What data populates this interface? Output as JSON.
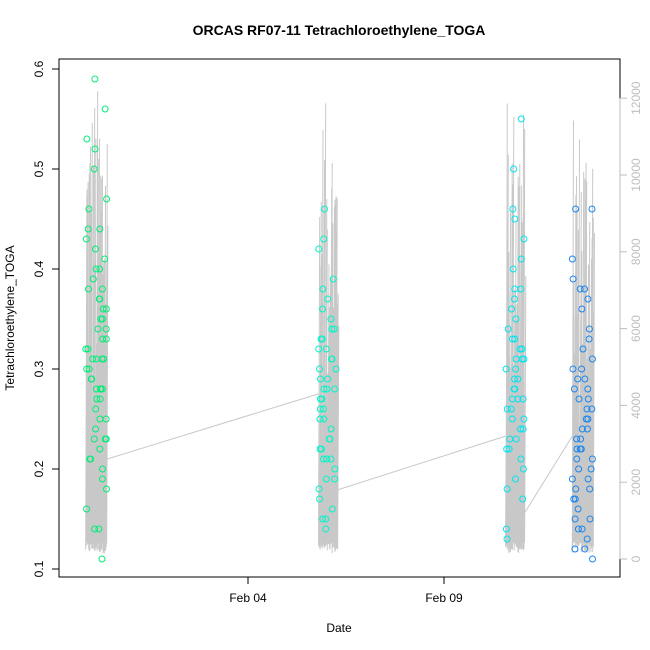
{
  "chart_data": {
    "type": "scatter",
    "title": "ORCAS RF07-11 Tetrachloroethylene_TOGA",
    "xlabel": "Date",
    "ylabel": "Tetrachloroethylene_TOGA",
    "x_ticks": [
      "Feb 04",
      "Feb 09"
    ],
    "y_ticks": [
      "0.1",
      "0.2",
      "0.3",
      "0.4",
      "0.5",
      "0.6"
    ],
    "y2_ticks": [
      "0",
      "2000",
      "4000",
      "6000",
      "8000",
      "10000",
      "12000"
    ],
    "xlim": [
      -0.2,
      14.5
    ],
    "ylim": [
      0.1,
      0.6
    ],
    "y2lim": [
      0,
      12800
    ],
    "grid": false,
    "legend": "none",
    "colors": {
      "flight1": "#00ee76",
      "flight2": "#00f5c8",
      "flight3": "#00e5ee",
      "flight4": "#1c86ee",
      "altitude": "#c8c8c8",
      "axis": "#000000",
      "y2axis": "#bebebe"
    },
    "flights": [
      {
        "x_range": [
          0.5,
          1.05
        ],
        "values": [
          0.11,
          0.14,
          0.16,
          0.18,
          0.19,
          0.2,
          0.21,
          0.21,
          0.22,
          0.23,
          0.23,
          0.24,
          0.25,
          0.25,
          0.26,
          0.27,
          0.27,
          0.28,
          0.28,
          0.28,
          0.29,
          0.29,
          0.3,
          0.3,
          0.31,
          0.31,
          0.31,
          0.32,
          0.32,
          0.33,
          0.33,
          0.34,
          0.34,
          0.35,
          0.35,
          0.36,
          0.36,
          0.37,
          0.37,
          0.38,
          0.38,
          0.39,
          0.4,
          0.4,
          0.41,
          0.42,
          0.43,
          0.44,
          0.44,
          0.46,
          0.47,
          0.5,
          0.52,
          0.53,
          0.56,
          0.59,
          0.14,
          0.23,
          0.28,
          0.31
        ]
      },
      {
        "x_range": [
          6.6,
          7.1
        ],
        "values": [
          0.14,
          0.15,
          0.16,
          0.17,
          0.18,
          0.19,
          0.19,
          0.2,
          0.21,
          0.21,
          0.22,
          0.22,
          0.23,
          0.23,
          0.24,
          0.25,
          0.25,
          0.26,
          0.26,
          0.27,
          0.27,
          0.28,
          0.28,
          0.29,
          0.29,
          0.3,
          0.3,
          0.31,
          0.31,
          0.32,
          0.32,
          0.33,
          0.33,
          0.34,
          0.34,
          0.35,
          0.36,
          0.37,
          0.38,
          0.39,
          0.42,
          0.43,
          0.46,
          0.15,
          0.21,
          0.28
        ]
      },
      {
        "x_range": [
          11.5,
          12.0
        ],
        "values": [
          0.13,
          0.14,
          0.17,
          0.18,
          0.19,
          0.2,
          0.21,
          0.22,
          0.22,
          0.23,
          0.24,
          0.24,
          0.25,
          0.25,
          0.26,
          0.26,
          0.27,
          0.27,
          0.28,
          0.28,
          0.29,
          0.29,
          0.3,
          0.3,
          0.31,
          0.31,
          0.32,
          0.32,
          0.33,
          0.33,
          0.34,
          0.35,
          0.36,
          0.37,
          0.38,
          0.38,
          0.4,
          0.41,
          0.43,
          0.45,
          0.46,
          0.5,
          0.55,
          0.23,
          0.27,
          0.31
        ]
      },
      {
        "x_range": [
          13.25,
          13.8
        ],
        "values": [
          0.11,
          0.12,
          0.12,
          0.13,
          0.14,
          0.14,
          0.15,
          0.15,
          0.16,
          0.17,
          0.17,
          0.18,
          0.18,
          0.19,
          0.19,
          0.2,
          0.2,
          0.21,
          0.21,
          0.22,
          0.22,
          0.22,
          0.23,
          0.23,
          0.24,
          0.24,
          0.25,
          0.25,
          0.26,
          0.26,
          0.27,
          0.27,
          0.28,
          0.28,
          0.29,
          0.29,
          0.3,
          0.3,
          0.31,
          0.32,
          0.33,
          0.34,
          0.36,
          0.37,
          0.38,
          0.39,
          0.46,
          0.46,
          0.41,
          0.38
        ]
      }
    ],
    "altitude_connectors": [
      [
        [
          1.05,
          2600
        ],
        [
          6.6,
          4300
        ]
      ],
      [
        [
          7.1,
          1800
        ],
        [
          11.5,
          3200
        ]
      ],
      [
        [
          12.0,
          1200
        ],
        [
          13.25,
          3200
        ]
      ]
    ]
  }
}
